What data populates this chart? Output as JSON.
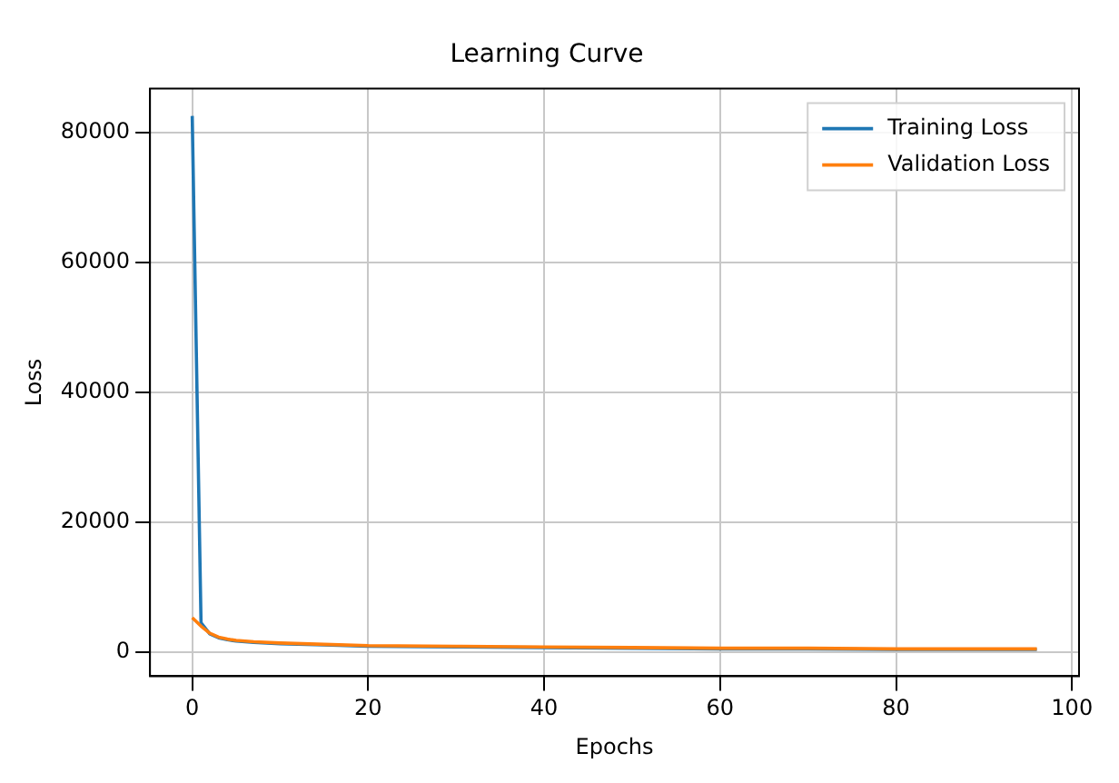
{
  "chart_data": {
    "type": "line",
    "title": "Learning Curve",
    "xlabel": "Epochs",
    "ylabel": "Loss",
    "xlim": [
      -4.8,
      100.8
    ],
    "ylim": [
      -3700,
      86700
    ],
    "xticks": [
      0,
      20,
      40,
      60,
      80,
      100
    ],
    "yticks": [
      0,
      20000,
      40000,
      60000,
      80000
    ],
    "grid": true,
    "legend": "top right",
    "marker": "none",
    "line_style": "solid",
    "series": [
      {
        "name": "Training Loss",
        "color": "#1f77b4",
        "x": [
          0,
          1,
          2,
          3,
          4,
          5,
          7,
          10,
          15,
          20,
          30,
          40,
          50,
          60,
          70,
          80,
          90,
          96
        ],
        "values": [
          82500,
          4500,
          2800,
          2200,
          1900,
          1700,
          1500,
          1300,
          1100,
          900,
          800,
          700,
          600,
          500,
          500,
          400,
          400,
          400
        ]
      },
      {
        "name": "Validation Loss",
        "color": "#ff7f0e",
        "x": [
          0,
          1,
          2,
          3,
          4,
          5,
          7,
          10,
          15,
          20,
          30,
          40,
          50,
          60,
          70,
          80,
          90,
          96
        ],
        "values": [
          5300,
          4000,
          2900,
          2300,
          2000,
          1800,
          1600,
          1400,
          1200,
          1000,
          900,
          800,
          700,
          600,
          600,
          500,
          500,
          500
        ]
      }
    ]
  }
}
